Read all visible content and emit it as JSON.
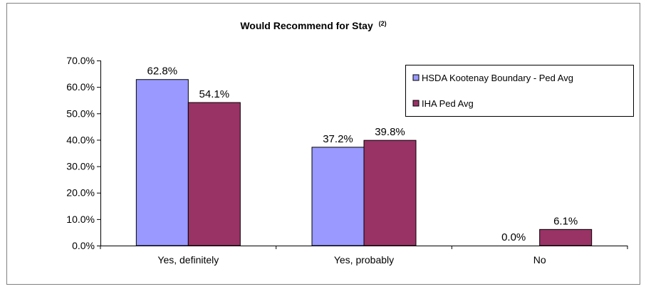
{
  "chart_data": {
    "type": "bar",
    "title": "Would Recommend for Stay",
    "title_superscript": "(2)",
    "categories": [
      "Yes, definitely",
      "Yes, probably",
      "No"
    ],
    "series": [
      {
        "name": "HSDA Kootenay Boundary - Ped Avg",
        "values": [
          62.8,
          37.2,
          0.0
        ],
        "labels": [
          "62.8%",
          "37.2%",
          "0.0%"
        ],
        "color": "#9999ff"
      },
      {
        "name": "IHA Ped Avg",
        "values": [
          54.1,
          39.8,
          6.1
        ],
        "labels": [
          "54.1%",
          "39.8%",
          "6.1%"
        ],
        "color": "#993366"
      }
    ],
    "ylim": [
      0,
      70
    ],
    "yticks": [
      "0.0%",
      "10.0%",
      "20.0%",
      "30.0%",
      "40.0%",
      "50.0%",
      "60.0%",
      "70.0%"
    ],
    "ytick_values": [
      0,
      10,
      20,
      30,
      40,
      50,
      60,
      70
    ],
    "grid": false,
    "legend_position": "top-right",
    "xlabel": "",
    "ylabel": ""
  }
}
